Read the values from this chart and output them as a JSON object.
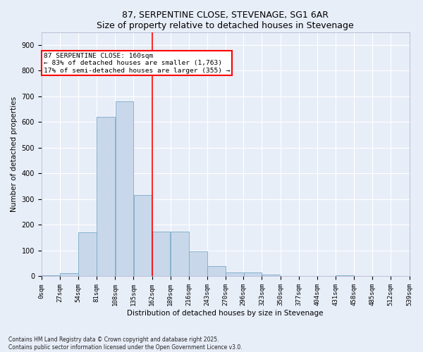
{
  "title": "87, SERPENTINE CLOSE, STEVENAGE, SG1 6AR",
  "subtitle": "Size of property relative to detached houses in Stevenage",
  "xlabel": "Distribution of detached houses by size in Stevenage",
  "ylabel": "Number of detached properties",
  "bar_color": "#c8d8ea",
  "bar_edge_color": "#7aaac8",
  "background_color": "#e8eef8",
  "grid_color": "#ffffff",
  "vline_x": 162,
  "vline_color": "red",
  "annotation_text": "87 SERPENTINE CLOSE: 160sqm\n← 83% of detached houses are smaller (1,763)\n17% of semi-detached houses are larger (355) →",
  "annotation_box_color": "white",
  "annotation_box_edge": "red",
  "bin_edges": [
    0,
    27,
    54,
    81,
    108,
    135,
    162,
    189,
    216,
    243,
    270,
    296,
    323,
    350,
    377,
    404,
    431,
    458,
    485,
    512,
    539
  ],
  "bar_heights": [
    5,
    13,
    170,
    620,
    680,
    315,
    175,
    175,
    98,
    40,
    15,
    14,
    8,
    0,
    0,
    0,
    5,
    0,
    0,
    0
  ],
  "ylim": [
    0,
    950
  ],
  "yticks": [
    0,
    100,
    200,
    300,
    400,
    500,
    600,
    700,
    800,
    900
  ],
  "footer_text": "Contains HM Land Registry data © Crown copyright and database right 2025.\nContains public sector information licensed under the Open Government Licence v3.0.",
  "figsize": [
    6.0,
    5.0
  ],
  "dpi": 100
}
